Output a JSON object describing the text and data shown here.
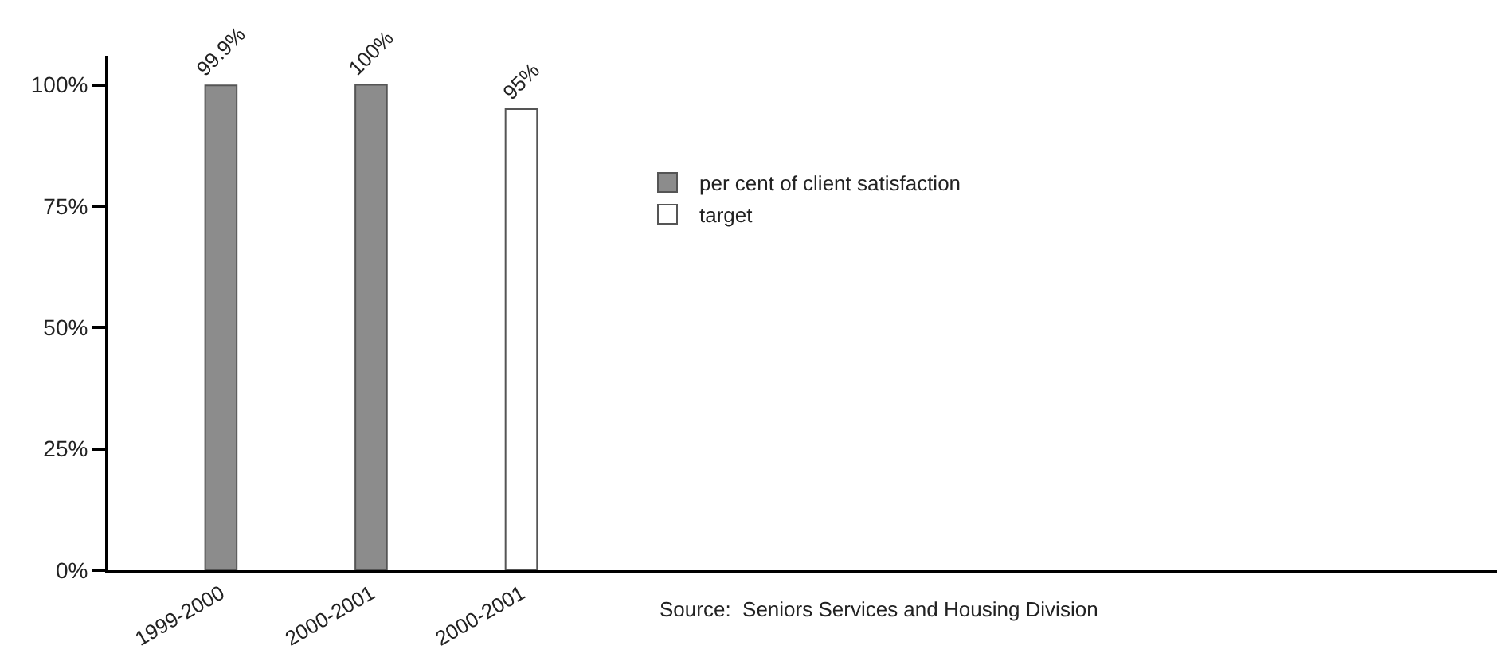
{
  "chart_data": {
    "type": "bar",
    "categories": [
      "1999-2000",
      "2000-2001",
      "2000-2001"
    ],
    "series": [
      {
        "name": "per cent of client satisfaction",
        "color": "#8c8c8c",
        "values": [
          99.9,
          100,
          null
        ],
        "value_labels": [
          "99.9%",
          "100%",
          null
        ]
      },
      {
        "name": "target",
        "color": "#ffffff",
        "values": [
          null,
          null,
          95
        ],
        "value_labels": [
          null,
          null,
          "95%"
        ]
      }
    ],
    "ylim": [
      0,
      106
    ],
    "yticks": [
      {
        "value": 0,
        "label": "0%"
      },
      {
        "value": 25,
        "label": "25%"
      },
      {
        "value": 50,
        "label": "50%"
      },
      {
        "value": 75,
        "label": "75%"
      },
      {
        "value": 100,
        "label": "100%"
      }
    ],
    "legend": "top",
    "annotations": [
      "Source:  Seniors Services and Housing Division"
    ]
  }
}
